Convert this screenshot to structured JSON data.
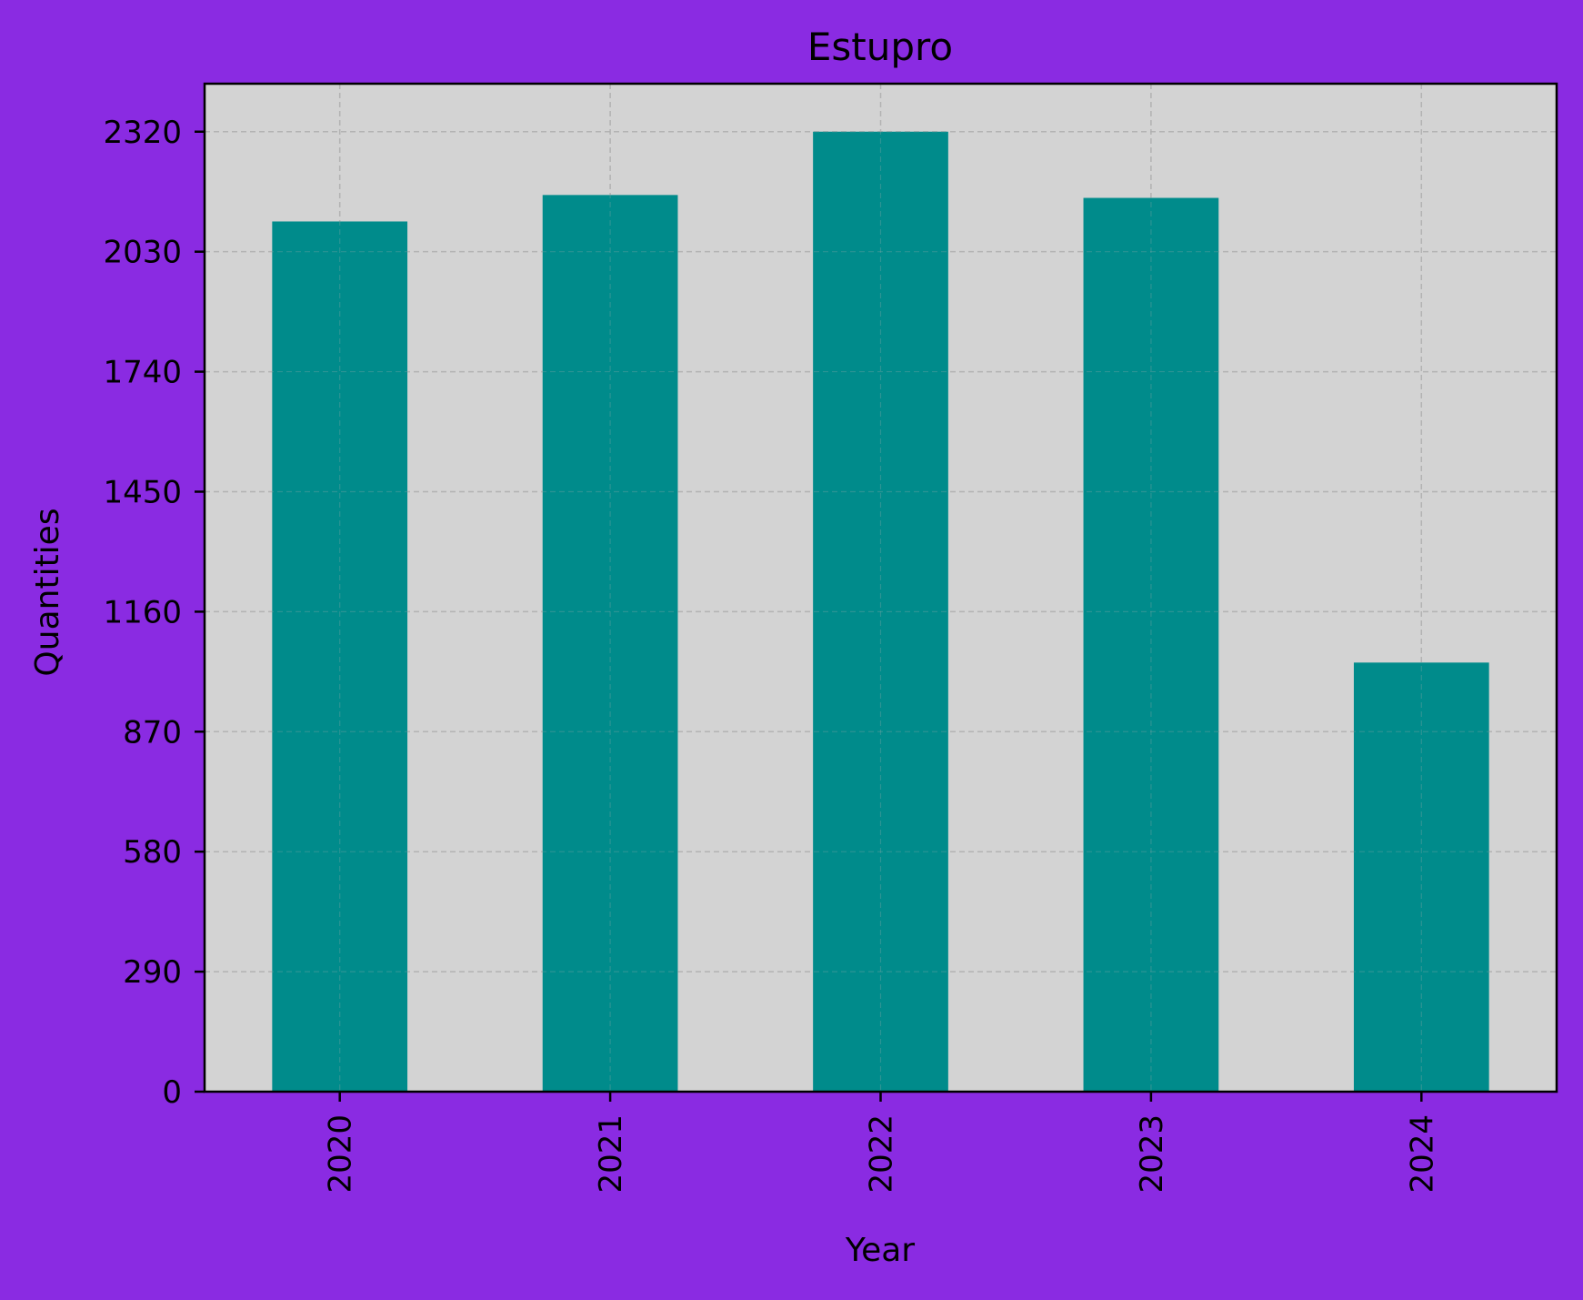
{
  "colors": {
    "figure_background": "#8a2be2",
    "plot_background": "#d3d3d3",
    "bar": "#008b8b",
    "grid": "#b0b0b0",
    "axes": "#000000"
  },
  "chart_data": {
    "type": "bar",
    "title": "Estupro",
    "xlabel": "Year",
    "ylabel": "Quantities",
    "categories": [
      "2020",
      "2021",
      "2022",
      "2023",
      "2024"
    ],
    "values": [
      2103,
      2167,
      2320,
      2160,
      1037
    ],
    "ylim": [
      0,
      2436
    ],
    "yticks": [
      0,
      290,
      580,
      870,
      1160,
      1450,
      1740,
      2030,
      2320
    ],
    "ytick_labels": [
      "0",
      "290",
      "580",
      "870",
      "1160",
      "1450",
      "1740",
      "2030",
      "2320"
    ],
    "xtick_rotation": "vertical",
    "grid": true,
    "legend": "none"
  }
}
